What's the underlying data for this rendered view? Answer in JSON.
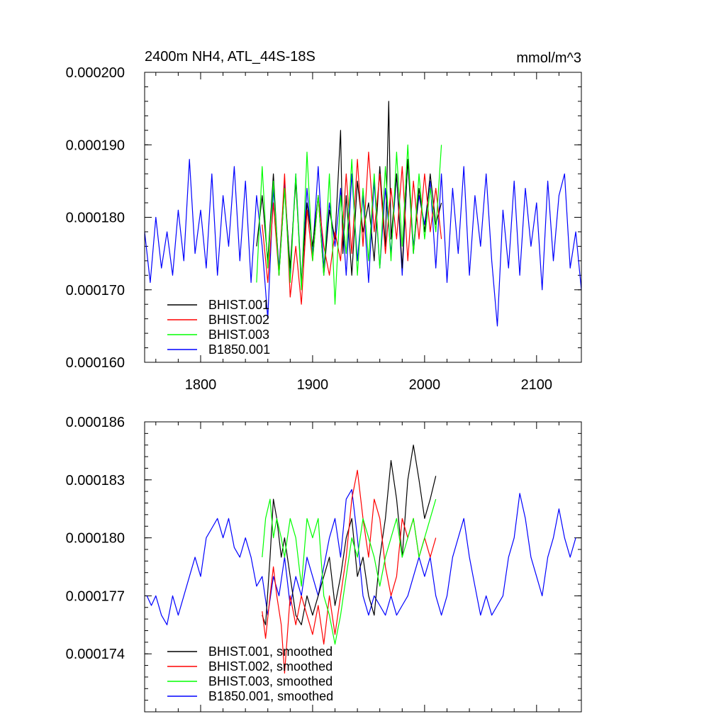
{
  "colors": {
    "BHIST.001": "#000000",
    "BHIST.002": "#ff0000",
    "BHIST.003": "#00ff00",
    "B1850.001": "#0000ff"
  },
  "chart_data": [
    {
      "type": "line",
      "title": "2400m NH4, ATL_44S-18S",
      "units": "mmol/m^3",
      "xlim": [
        1750,
        2140
      ],
      "ylim": [
        0.00016,
        0.0002
      ],
      "x_ticks": [
        1800,
        1900,
        2000,
        2100
      ],
      "x_tick_labels": [
        "1800",
        "1900",
        "2000",
        "2100"
      ],
      "y_ticks": [
        0.00016,
        0.00017,
        0.00018,
        0.00019,
        0.0002
      ],
      "y_tick_labels": [
        "0.000160",
        "0.000170",
        "0.000180",
        "0.000190",
        "0.000200"
      ],
      "legend": "bottom-left",
      "series": [
        {
          "name": "BHIST.001",
          "label": "BHIST.001",
          "color_key": "BHIST.001",
          "x": [
            1850,
            1855,
            1860,
            1865,
            1870,
            1875,
            1880,
            1885,
            1890,
            1895,
            1900,
            1905,
            1910,
            1915,
            1920,
            1925,
            1927,
            1930,
            1935,
            1940,
            1945,
            1950,
            1955,
            1960,
            1965,
            1968,
            1970,
            1975,
            1980,
            1985,
            1990,
            1995,
            2000,
            2005,
            2010,
            2015
          ],
          "values": [
            0.000176,
            0.000183,
            0.000174,
            0.000186,
            0.000172,
            0.000184,
            0.000173,
            0.000185,
            0.000171,
            0.000182,
            0.000176,
            0.000183,
            0.000172,
            0.000181,
            0.000177,
            0.000192,
            0.000175,
            0.000183,
            0.000172,
            0.000185,
            0.000178,
            0.000182,
            0.000174,
            0.000187,
            0.000176,
            0.000196,
            0.000177,
            0.000186,
            0.000173,
            0.000188,
            0.000175,
            0.000184,
            0.000178,
            0.000186,
            0.000179,
            0.000182
          ]
        },
        {
          "name": "BHIST.002",
          "label": "BHIST.002",
          "color_key": "BHIST.002",
          "x": [
            1855,
            1860,
            1865,
            1870,
            1875,
            1880,
            1885,
            1890,
            1895,
            1900,
            1905,
            1910,
            1915,
            1920,
            1925,
            1930,
            1935,
            1940,
            1945,
            1950,
            1955,
            1960,
            1965,
            1970,
            1975,
            1980,
            1985,
            1990,
            1995,
            2000,
            2005,
            2010,
            2015
          ],
          "values": [
            0.000179,
            0.000171,
            0.000182,
            0.000172,
            0.000186,
            0.000169,
            0.000176,
            0.000168,
            0.000181,
            0.000174,
            0.000183,
            0.000176,
            0.000172,
            0.000178,
            0.000174,
            0.000186,
            0.000175,
            0.000188,
            0.000176,
            0.000189,
            0.000178,
            0.000186,
            0.000175,
            0.000184,
            0.000177,
            0.000187,
            0.000174,
            0.000185,
            0.000177,
            0.000186,
            0.000178,
            0.000184,
            0.000177
          ]
        },
        {
          "name": "BHIST.003",
          "label": "BHIST.003",
          "color_key": "BHIST.003",
          "x": [
            1850,
            1855,
            1860,
            1865,
            1870,
            1875,
            1880,
            1885,
            1890,
            1895,
            1900,
            1905,
            1910,
            1915,
            1920,
            1925,
            1930,
            1935,
            1940,
            1945,
            1950,
            1955,
            1960,
            1965,
            1970,
            1975,
            1980,
            1985,
            1990,
            1995,
            2000,
            2005,
            2010,
            2015
          ],
          "values": [
            0.000171,
            0.000187,
            0.000173,
            0.000185,
            0.000172,
            0.000184,
            0.000171,
            0.000186,
            0.00017,
            0.000189,
            0.000174,
            0.000183,
            0.000172,
            0.000186,
            0.000168,
            0.000183,
            0.000175,
            0.000188,
            0.000172,
            0.000184,
            0.000174,
            0.000186,
            0.000173,
            0.000187,
            0.000174,
            0.000189,
            0.000176,
            0.00019,
            0.000175,
            0.000186,
            0.000177,
            0.000184,
            0.000178,
            0.00019
          ]
        },
        {
          "name": "B1850.001",
          "label": "B1850.001",
          "color_key": "B1850.001",
          "x": [
            1750,
            1755,
            1760,
            1765,
            1770,
            1775,
            1780,
            1785,
            1790,
            1795,
            1800,
            1805,
            1810,
            1815,
            1820,
            1825,
            1830,
            1835,
            1840,
            1845,
            1850,
            1855,
            1860,
            1865,
            1870,
            1875,
            1880,
            1885,
            1890,
            1895,
            1900,
            1905,
            1910,
            1915,
            1920,
            1925,
            1930,
            1935,
            1940,
            1945,
            1950,
            1955,
            1960,
            1965,
            1970,
            1975,
            1980,
            1985,
            1990,
            1995,
            2000,
            2005,
            2010,
            2015,
            2020,
            2025,
            2030,
            2035,
            2040,
            2045,
            2050,
            2055,
            2060,
            2065,
            2070,
            2075,
            2080,
            2085,
            2090,
            2095,
            2100,
            2105,
            2110,
            2115,
            2120,
            2125,
            2130,
            2135,
            2140
          ],
          "values": [
            0.000178,
            0.000171,
            0.00018,
            0.000173,
            0.000178,
            0.000172,
            0.000181,
            0.000174,
            0.000188,
            0.000175,
            0.000181,
            0.000173,
            0.000186,
            0.000172,
            0.000183,
            0.000176,
            0.000187,
            0.000174,
            0.000185,
            0.000171,
            0.000183,
            0.000176,
            0.000166,
            0.000184,
            0.000173,
            0.000185,
            0.000172,
            0.000186,
            0.000171,
            0.000184,
            0.000175,
            0.000187,
            0.000173,
            0.000182,
            0.000176,
            0.000184,
            0.000172,
            0.000186,
            0.000174,
            0.000183,
            0.000171,
            0.000185,
            0.000173,
            0.000184,
            0.000175,
            0.000186,
            0.000172,
            0.000188,
            0.000176,
            0.000183,
            0.000179,
            0.000185,
            0.000173,
            0.000186,
            0.000171,
            0.000184,
            0.000175,
            0.000187,
            0.000172,
            0.000183,
            0.000176,
            0.000186,
            0.000174,
            0.000165,
            0.000181,
            0.000173,
            0.000185,
            0.000172,
            0.000184,
            0.000176,
            0.000182,
            0.00017,
            0.000185,
            0.000174,
            0.000183,
            0.000186,
            0.000173,
            0.000178,
            0.00017
          ]
        }
      ]
    },
    {
      "type": "line",
      "xlim": [
        1750,
        2140
      ],
      "ylim": [
        0.000171,
        0.000186
      ],
      "x_ticks": [
        1800,
        1900,
        2000,
        2100
      ],
      "y_ticks": [
        0.000174,
        0.000177,
        0.00018,
        0.000183,
        0.000186
      ],
      "y_tick_labels": [
        "0.000174",
        "0.000177",
        "0.000180",
        "0.000183",
        "0.000186"
      ],
      "legend": "bottom-left",
      "series": [
        {
          "name": "BHIST.001",
          "label": "BHIST.001, smoothed",
          "color_key": "BHIST.001",
          "x": [
            1855,
            1858,
            1862,
            1865,
            1868,
            1872,
            1875,
            1880,
            1885,
            1890,
            1895,
            1900,
            1905,
            1910,
            1915,
            1920,
            1925,
            1930,
            1935,
            1940,
            1945,
            1950,
            1955,
            1960,
            1965,
            1970,
            1975,
            1980,
            1985,
            1990,
            1995,
            2000,
            2005,
            2010
          ],
          "values": [
            0.000176,
            0.0001755,
            0.000179,
            0.000182,
            0.000181,
            0.000179,
            0.00018,
            0.000178,
            0.000176,
            0.0001755,
            0.000177,
            0.000176,
            0.000177,
            0.000178,
            0.000179,
            0.0001765,
            0.000178,
            0.00018,
            0.000181,
            0.000178,
            0.000179,
            0.000177,
            0.000176,
            0.000179,
            0.000181,
            0.000184,
            0.000182,
            0.000179,
            0.000183,
            0.0001848,
            0.000183,
            0.000181,
            0.000182,
            0.0001832
          ]
        },
        {
          "name": "BHIST.002",
          "label": "BHIST.002, smoothed",
          "color_key": "BHIST.002",
          "x": [
            1855,
            1858,
            1862,
            1865,
            1868,
            1872,
            1875,
            1880,
            1885,
            1890,
            1895,
            1900,
            1905,
            1910,
            1915,
            1920,
            1925,
            1930,
            1935,
            1940,
            1945,
            1950,
            1955,
            1960,
            1965,
            1970,
            1975,
            1980,
            1985,
            1990,
            1995,
            2000,
            2005,
            2010
          ],
          "values": [
            0.0001762,
            0.0001748,
            0.000177,
            0.0001785,
            0.000177,
            0.0001755,
            0.000173,
            0.000177,
            0.0001755,
            0.000177,
            0.000176,
            0.000175,
            0.0001765,
            0.0001745,
            0.000177,
            0.000175,
            0.000177,
            0.000179,
            0.000182,
            0.0001835,
            0.000181,
            0.000179,
            0.000182,
            0.000181,
            0.0001785,
            0.000177,
            0.000178,
            0.000181,
            0.00018,
            0.000181,
            0.000179,
            0.00018,
            0.000179,
            0.00018
          ]
        },
        {
          "name": "BHIST.003",
          "label": "BHIST.003, smoothed",
          "color_key": "BHIST.003",
          "x": [
            1855,
            1858,
            1862,
            1865,
            1868,
            1872,
            1875,
            1880,
            1885,
            1890,
            1895,
            1900,
            1905,
            1910,
            1915,
            1920,
            1925,
            1930,
            1935,
            1940,
            1945,
            1950,
            1955,
            1960,
            1965,
            1970,
            1975,
            1980,
            1985,
            1990,
            1995,
            2000,
            2005,
            2010
          ],
          "values": [
            0.000179,
            0.000181,
            0.000182,
            0.00018,
            0.000181,
            0.00018,
            0.000179,
            0.000181,
            0.00018,
            0.0001775,
            0.000181,
            0.00018,
            0.000181,
            0.000177,
            0.000176,
            0.0001745,
            0.000176,
            0.000178,
            0.00018,
            0.000179,
            0.000181,
            0.00018,
            0.000179,
            0.0001775,
            0.000179,
            0.00018,
            0.000181,
            0.000179,
            0.00018,
            0.000181,
            0.000179,
            0.00018,
            0.000181,
            0.000182
          ]
        },
        {
          "name": "B1850.001",
          "label": "B1850.001, smoothed",
          "color_key": "B1850.001",
          "x": [
            1752,
            1756,
            1760,
            1765,
            1770,
            1775,
            1780,
            1785,
            1790,
            1795,
            1800,
            1805,
            1810,
            1815,
            1820,
            1825,
            1830,
            1835,
            1840,
            1845,
            1850,
            1855,
            1860,
            1865,
            1870,
            1875,
            1880,
            1885,
            1890,
            1895,
            1900,
            1905,
            1910,
            1915,
            1920,
            1925,
            1930,
            1935,
            1940,
            1945,
            1950,
            1955,
            1960,
            1965,
            1970,
            1975,
            1980,
            1985,
            1990,
            1995,
            2000,
            2005,
            2010,
            2015,
            2020,
            2025,
            2030,
            2035,
            2040,
            2045,
            2050,
            2055,
            2060,
            2065,
            2070,
            2075,
            2080,
            2085,
            2090,
            2095,
            2100,
            2105,
            2110,
            2115,
            2120,
            2125,
            2130,
            2135
          ],
          "values": [
            0.000177,
            0.0001765,
            0.000177,
            0.000176,
            0.0001755,
            0.000177,
            0.000176,
            0.000177,
            0.000178,
            0.000179,
            0.000178,
            0.00018,
            0.0001805,
            0.000181,
            0.00018,
            0.000181,
            0.0001795,
            0.000179,
            0.00018,
            0.000179,
            0.0001775,
            0.000178,
            0.000176,
            0.000178,
            0.000177,
            0.000179,
            0.0001765,
            0.000178,
            0.000177,
            0.000179,
            0.000178,
            0.000177,
            0.0001785,
            0.00018,
            0.000181,
            0.000179,
            0.000182,
            0.0001825,
            0.00018,
            0.000177,
            0.000176,
            0.000177,
            0.0001765,
            0.000176,
            0.000177,
            0.000176,
            0.0001765,
            0.000177,
            0.000178,
            0.000179,
            0.000178,
            0.000179,
            0.000177,
            0.000176,
            0.000177,
            0.000179,
            0.00018,
            0.000181,
            0.000179,
            0.0001775,
            0.000176,
            0.000177,
            0.000176,
            0.0001765,
            0.000177,
            0.000179,
            0.00018,
            0.0001823,
            0.000181,
            0.000179,
            0.000178,
            0.000177,
            0.000179,
            0.00018,
            0.0001815,
            0.00018,
            0.000179,
            0.00018
          ]
        }
      ]
    }
  ]
}
